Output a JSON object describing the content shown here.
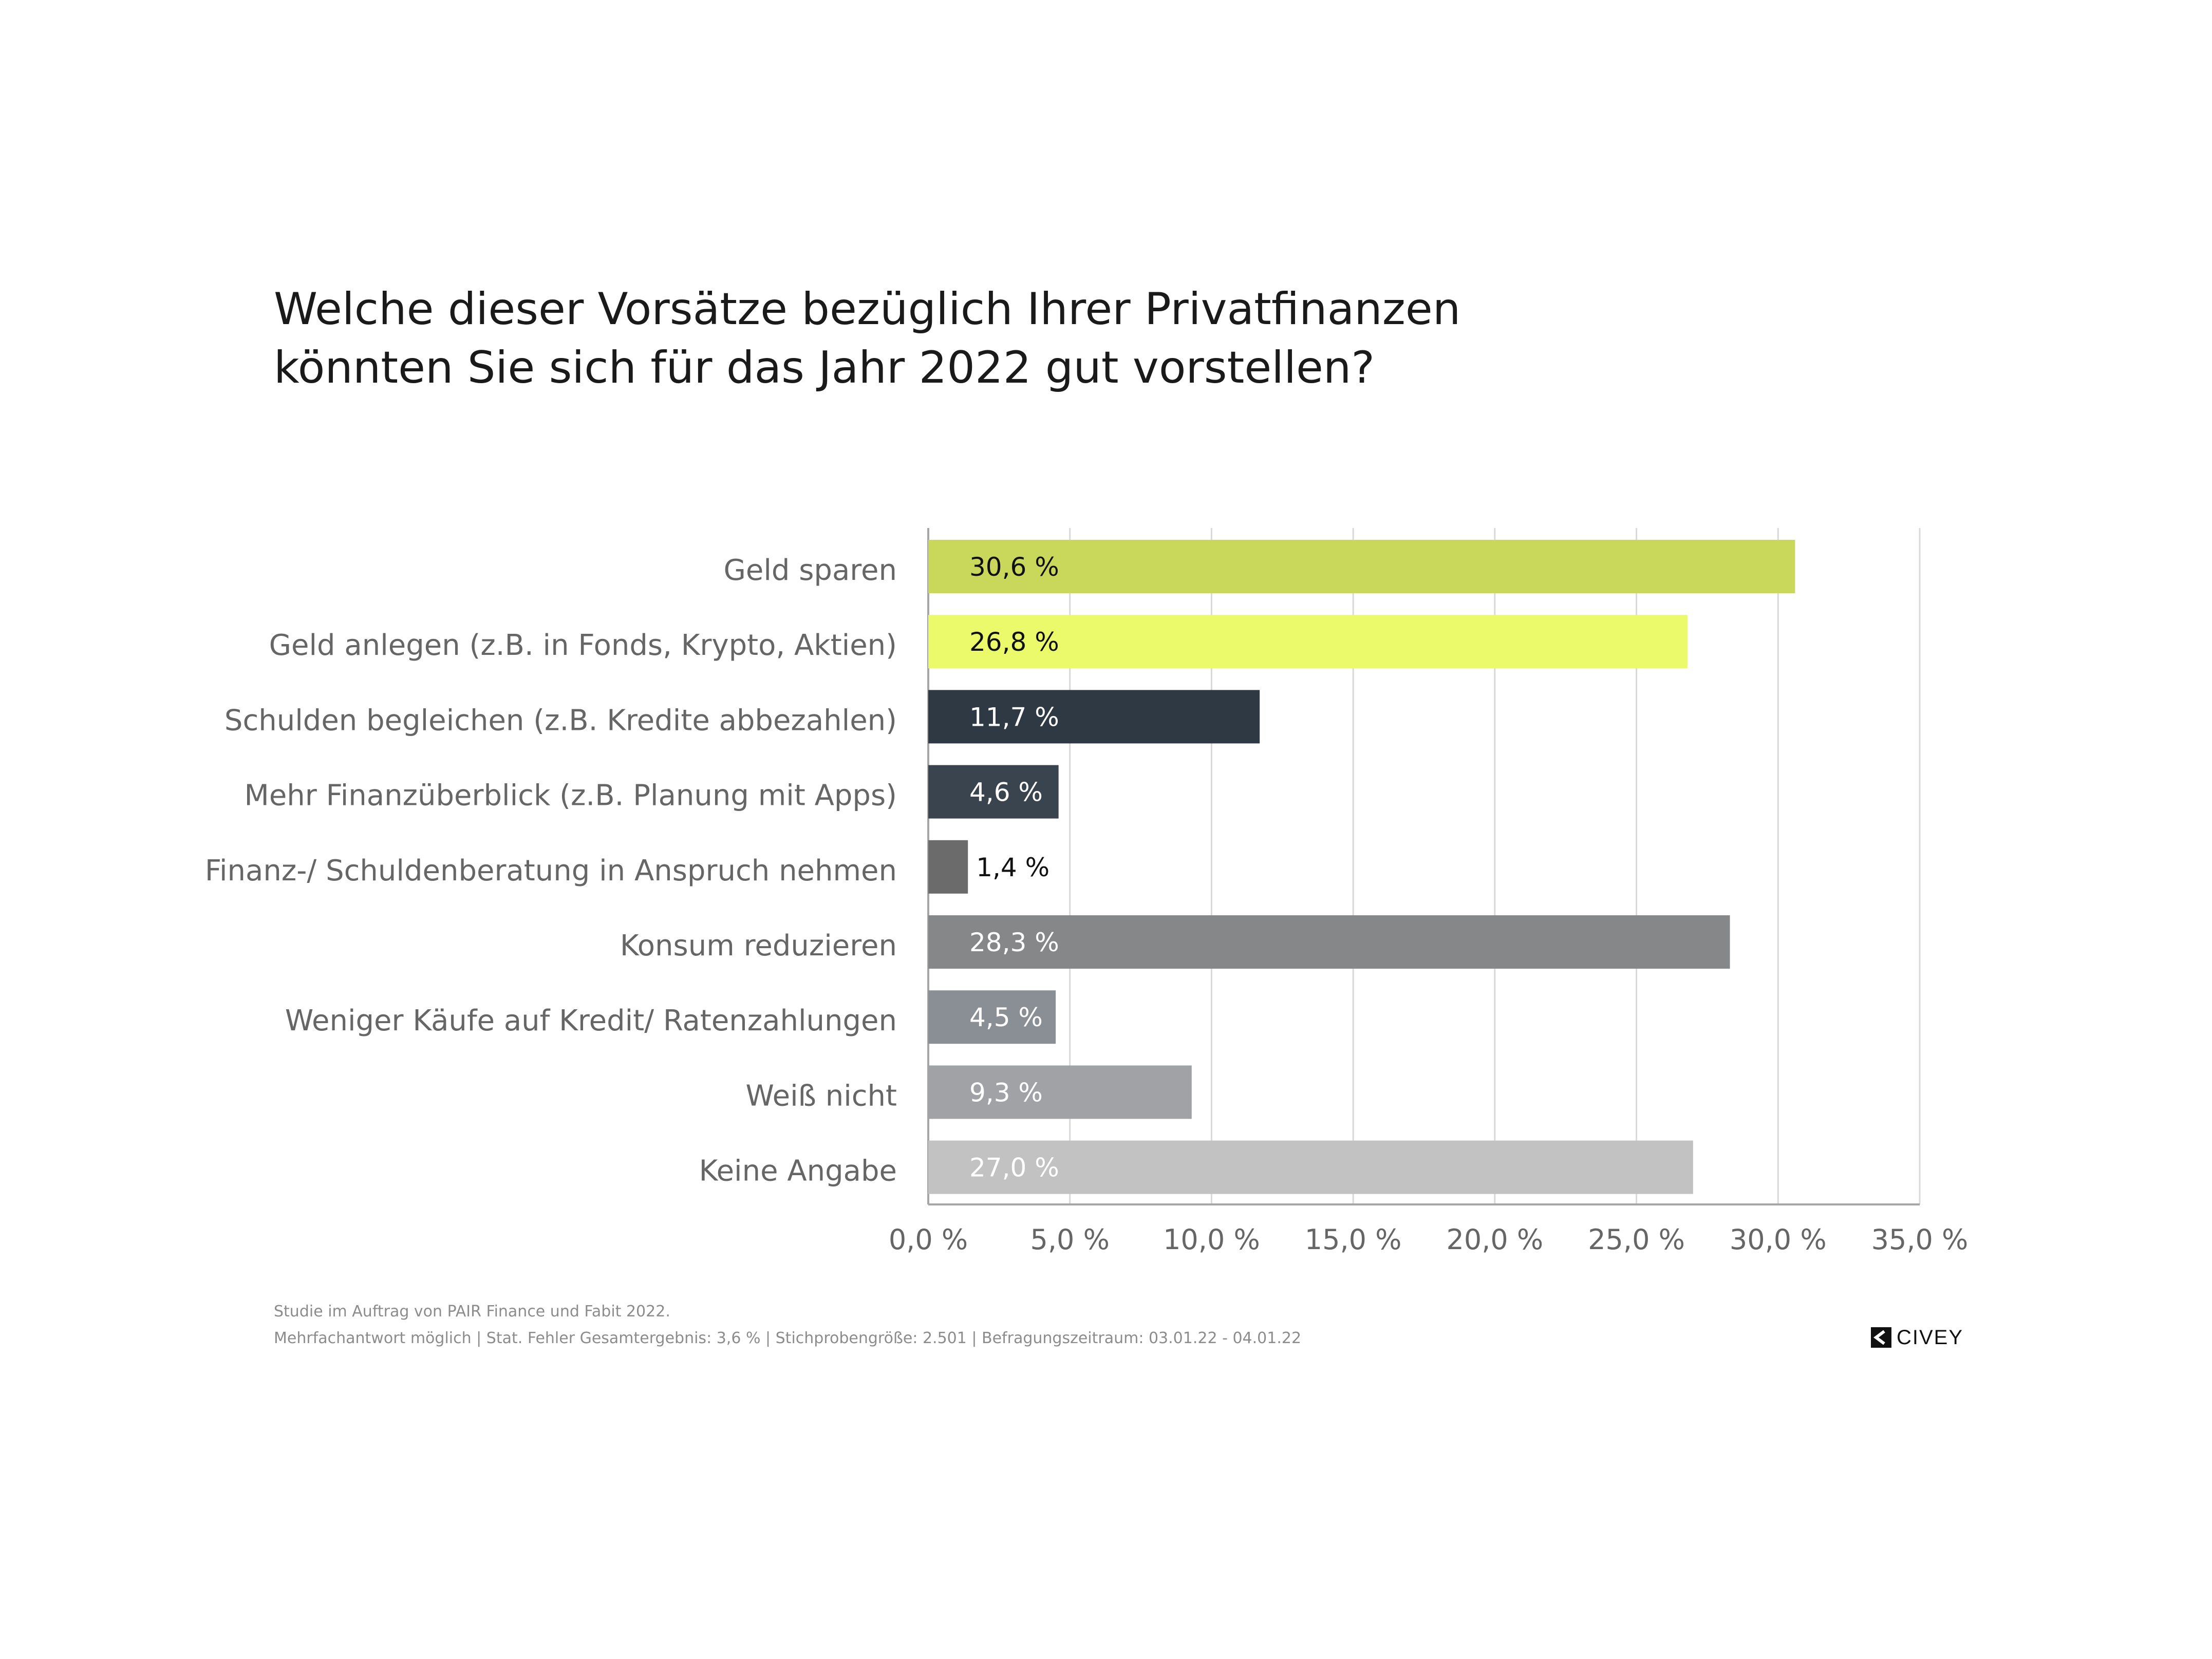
{
  "title_lines": [
    "Welche dieser Vorsätze bezüglich Ihrer Privatfinanzen",
    "könnten Sie sich für das Jahr 2022 gut vorstellen?"
  ],
  "footnote": {
    "line1": "Studie im Auftrag von PAIR Finance und Fabit 2022.",
    "line2": "Mehrfachantwort möglich | Stat. Fehler Gesamtergebnis: 3,6 % | Stichprobengröße: 2.501 | Befragungszeitraum: 03.01.22 - 04.01.22"
  },
  "logo": {
    "text": "CIVEY",
    "icon": "civey-logo-icon"
  },
  "chart_data": {
    "type": "bar",
    "orientation": "horizontal",
    "title": "Welche dieser Vorsätze bezüglich Ihrer Privatfinanzen könnten Sie sich für das Jahr 2022 gut vorstellen?",
    "xlabel": "",
    "ylabel": "",
    "xlim": [
      0,
      35
    ],
    "grid": true,
    "legend": "none",
    "x_ticks": [
      0,
      5,
      10,
      15,
      20,
      25,
      30,
      35
    ],
    "x_tick_labels": [
      "0,0 %",
      "5,0 %",
      "10,0 %",
      "15,0 %",
      "20,0 %",
      "25,0 %",
      "30,0 %",
      "35,0 %"
    ],
    "categories": [
      "Geld sparen",
      "Geld anlegen (z.B. in Fonds, Krypto, Aktien)",
      "Schulden begleichen (z.B. Kredite abbezahlen)",
      "Mehr Finanzüberblick (z.B. Planung mit Apps)",
      "Finanz-/ Schuldenberatung in Anspruch nehmen",
      "Konsum reduzieren",
      "Weniger Käufe auf Kredit/ Ratenzahlungen",
      "Weiß nicht",
      "Keine Angabe"
    ],
    "values": [
      30.6,
      26.8,
      11.7,
      4.6,
      1.4,
      28.3,
      4.5,
      9.3,
      27.0
    ],
    "value_labels": [
      "30,6 %",
      "26,8 %",
      "11,7 %",
      "4,6 %",
      "1,4 %",
      "28,3 %",
      "4,5 %",
      "9,3 %",
      "27,0 %"
    ],
    "colors": [
      "#c9d85a",
      "#ebfa6b",
      "#2f3943",
      "#3a444f",
      "#6b6b6b",
      "#868788",
      "#8a8f96",
      "#a0a2a5",
      "#c2c2c2"
    ],
    "label_colors": [
      "#111111",
      "#111111",
      "#ffffff",
      "#ffffff",
      "#111111",
      "#ffffff",
      "#ffffff",
      "#ffffff",
      "#ffffff"
    ],
    "colors_meta": {
      "category_text": "#666666",
      "tick_text": "#666666",
      "grid": "#d9d9d9",
      "axis": "#a6a6a6"
    }
  }
}
